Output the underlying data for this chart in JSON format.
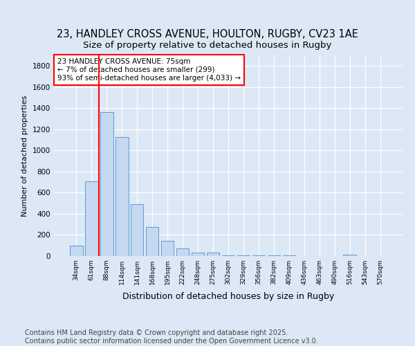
{
  "title1": "23, HANDLEY CROSS AVENUE, HOULTON, RUGBY, CV23 1AE",
  "title2": "Size of property relative to detached houses in Rugby",
  "xlabel": "Distribution of detached houses by size in Rugby",
  "ylabel": "Number of detached properties",
  "categories": [
    "34sqm",
    "61sqm",
    "88sqm",
    "114sqm",
    "141sqm",
    "168sqm",
    "195sqm",
    "222sqm",
    "248sqm",
    "275sqm",
    "302sqm",
    "329sqm",
    "356sqm",
    "382sqm",
    "409sqm",
    "436sqm",
    "463sqm",
    "490sqm",
    "516sqm",
    "543sqm",
    "570sqm"
  ],
  "values": [
    100,
    710,
    1360,
    1130,
    490,
    275,
    145,
    70,
    35,
    35,
    5,
    5,
    5,
    5,
    5,
    0,
    0,
    0,
    10,
    0,
    0
  ],
  "bar_color": "#c5d8f0",
  "bar_edge_color": "#5b9bd5",
  "vline_x": 1.5,
  "vline_color": "red",
  "annotation_text": "23 HANDLEY CROSS AVENUE: 75sqm\n← 7% of detached houses are smaller (299)\n93% of semi-detached houses are larger (4,033) →",
  "annotation_box_color": "white",
  "annotation_box_edge": "red",
  "ylim": [
    0,
    1900
  ],
  "background_color": "#dce8f5",
  "plot_background": "#dce8f5",
  "footer": "Contains HM Land Registry data © Crown copyright and database right 2025.\nContains public sector information licensed under the Open Government Licence v3.0.",
  "title1_fontsize": 10.5,
  "title2_fontsize": 9.5,
  "xlabel_fontsize": 9,
  "ylabel_fontsize": 8,
  "footer_fontsize": 7
}
